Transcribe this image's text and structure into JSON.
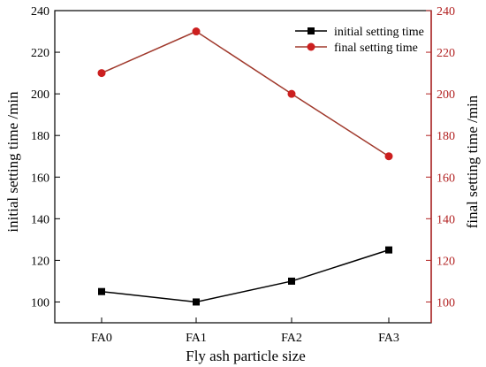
{
  "chart_data": {
    "type": "line",
    "categories": [
      "FA0",
      "FA1",
      "FA2",
      "FA3"
    ],
    "xlabel": "Fly ash particle size",
    "y_left_label": "initial setting time /min",
    "y_right_label": "final setting time /min",
    "y_left_lim": [
      90,
      240
    ],
    "y_right_lim": [
      90,
      240
    ],
    "y_ticks": [
      100,
      120,
      140,
      160,
      180,
      200,
      220,
      240
    ],
    "grid": false,
    "legend_position": "top-right",
    "series": [
      {
        "name": "initial setting time",
        "axis": "left",
        "marker": "square",
        "line_color": "#000000",
        "marker_color": "#000000",
        "values": [
          105,
          100,
          110,
          125
        ]
      },
      {
        "name": "final setting time",
        "axis": "right",
        "marker": "circle",
        "line_color": "#a0392c",
        "marker_color": "#cc1f1f",
        "values": [
          210,
          230,
          200,
          170
        ]
      }
    ],
    "right_axis_color": "#b22222"
  }
}
